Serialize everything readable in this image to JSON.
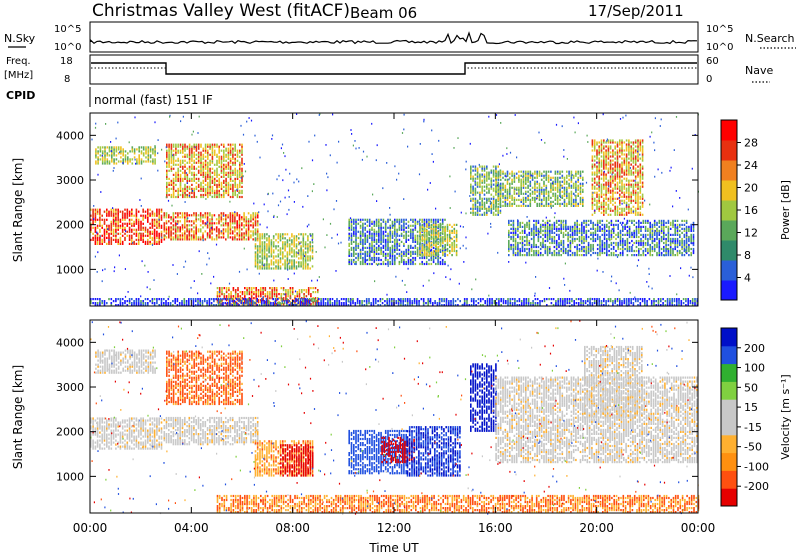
{
  "header": {
    "station": "Christmas Valley West (fitACF)",
    "beam": "Beam 06",
    "date": "17/Sep/2011"
  },
  "strip": {
    "nsky_label": "N.Sky",
    "nsearch_label": "N.Search",
    "nsky_ticks": [
      "10^5",
      "10^0"
    ],
    "nsearch_ticks": [
      "10^5",
      "10^0"
    ],
    "freq_label_1": "Freq.",
    "freq_label_2": "[MHz]",
    "freq_ticks": [
      "18",
      "8"
    ],
    "nave_label": "Nave",
    "nave_ticks": [
      "60",
      "0"
    ],
    "cpid_label": "CPID",
    "cpid_text": "normal (fast) 151 IF"
  },
  "x_ticks": [
    "00:00",
    "04:00",
    "08:00",
    "12:00",
    "16:00",
    "20:00",
    "00:00"
  ],
  "x_label": "Time UT",
  "colors": {
    "power_scale": [
      "#1a1aff",
      "#2a5fd8",
      "#2f8a6a",
      "#5aa85a",
      "#a0c840",
      "#f0c020",
      "#f08020",
      "#e83010",
      "#ff0000"
    ],
    "velocity_scale": [
      "#e60000",
      "#ff5010",
      "#ff9010",
      "#ffb030",
      "#c8c8c8",
      "#c8c8c8",
      "#80d040",
      "#30b030",
      "#2050e0",
      "#0010c8"
    ],
    "line": "#000000"
  },
  "chart_data": [
    {
      "type": "heatmap",
      "title": "Power",
      "xlabel": "Time UT",
      "ylabel": "Slant Range [km]",
      "x_range_hours": [
        0,
        24
      ],
      "ylim_km": [
        180,
        4500
      ],
      "y_ticks": [
        "1000",
        "2000",
        "3000",
        "4000"
      ],
      "colorbar": {
        "label": "Power [dB]",
        "unit": "dB",
        "ticks": [
          "28",
          "24",
          "20",
          "16",
          "12",
          "8",
          "4"
        ]
      },
      "regions": [
        {
          "t0": 0.0,
          "t1": 2.8,
          "r0": 1550,
          "r1": 2350,
          "value": 26
        },
        {
          "t0": 0.2,
          "t1": 2.6,
          "r0": 3350,
          "r1": 3750,
          "value": 18
        },
        {
          "t0": 2.9,
          "t1": 6.6,
          "r0": 1650,
          "r1": 2250,
          "value": 24
        },
        {
          "t0": 3.0,
          "t1": 6.0,
          "r0": 2600,
          "r1": 3800,
          "value": 22
        },
        {
          "t0": 6.5,
          "t1": 8.8,
          "r0": 1000,
          "r1": 1800,
          "value": 18
        },
        {
          "t0": 5.0,
          "t1": 9.0,
          "r0": 200,
          "r1": 600,
          "value": 24
        },
        {
          "t0": 10.2,
          "t1": 14.0,
          "r0": 1100,
          "r1": 2100,
          "value": 12
        },
        {
          "t0": 13.0,
          "t1": 14.5,
          "r0": 1300,
          "r1": 2000,
          "value": 18
        },
        {
          "t0": 15.0,
          "t1": 16.2,
          "r0": 2200,
          "r1": 3300,
          "value": 16
        },
        {
          "t0": 16.0,
          "t1": 19.5,
          "r0": 2400,
          "r1": 3200,
          "value": 16
        },
        {
          "t0": 16.5,
          "t1": 23.8,
          "r0": 1300,
          "r1": 2100,
          "value": 12
        },
        {
          "t0": 19.8,
          "t1": 21.8,
          "r0": 2200,
          "r1": 3900,
          "value": 22
        },
        {
          "t0": 0.0,
          "t1": 24.0,
          "r0": 180,
          "r1": 320,
          "value": 8
        }
      ]
    },
    {
      "type": "heatmap",
      "title": "Velocity",
      "xlabel": "Time UT",
      "ylabel": "Slant Range [km]",
      "x_range_hours": [
        0,
        24
      ],
      "ylim_km": [
        180,
        4500
      ],
      "y_ticks": [
        "1000",
        "2000",
        "3000",
        "4000"
      ],
      "colorbar": {
        "label": "Velocity [m s⁻¹]",
        "unit": "m s-1",
        "ticks": [
          "200",
          "100",
          "50",
          "15",
          "-15",
          "-50",
          "-100",
          "-200"
        ]
      },
      "regions": [
        {
          "t0": 0.0,
          "t1": 2.8,
          "r0": 1600,
          "r1": 2300,
          "value": 0
        },
        {
          "t0": 0.2,
          "t1": 2.6,
          "r0": 3300,
          "r1": 3800,
          "value": 0
        },
        {
          "t0": 2.9,
          "t1": 6.6,
          "r0": 1700,
          "r1": 2300,
          "value": 0
        },
        {
          "t0": 3.0,
          "t1": 6.0,
          "r0": 2600,
          "r1": 3800,
          "value": -60
        },
        {
          "t0": 6.5,
          "t1": 8.8,
          "r0": 1000,
          "r1": 1800,
          "value": -40
        },
        {
          "t0": 7.5,
          "t1": 8.8,
          "r0": 1000,
          "r1": 1700,
          "value": -150
        },
        {
          "t0": 5.0,
          "t1": 24.0,
          "r0": 180,
          "r1": 550,
          "value": -50
        },
        {
          "t0": 10.2,
          "t1": 12.5,
          "r0": 1050,
          "r1": 2000,
          "value": 150
        },
        {
          "t0": 11.5,
          "t1": 12.8,
          "r0": 1300,
          "r1": 1850,
          "value": -180
        },
        {
          "t0": 12.5,
          "t1": 14.6,
          "r0": 1000,
          "r1": 2100,
          "value": 200
        },
        {
          "t0": 15.0,
          "t1": 16.0,
          "r0": 2000,
          "r1": 3500,
          "value": 220
        },
        {
          "t0": 16.0,
          "t1": 24.0,
          "r0": 1300,
          "r1": 3200,
          "value": 0
        },
        {
          "t0": 19.5,
          "t1": 21.8,
          "r0": 2300,
          "r1": 3900,
          "value": 0
        }
      ]
    }
  ]
}
